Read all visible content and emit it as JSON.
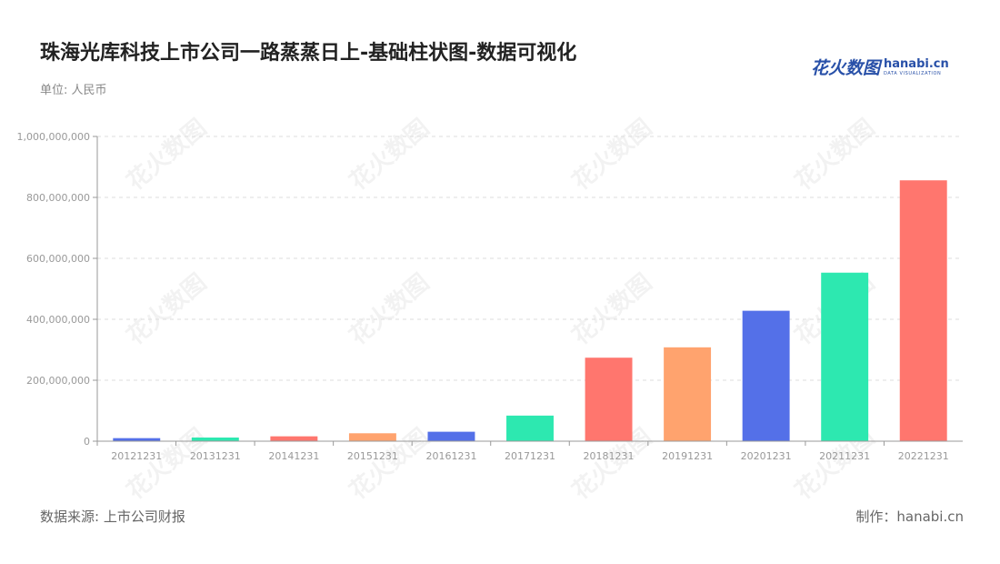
{
  "header": {
    "title": "珠海光库科技上市公司一路蒸蒸日上-基础柱状图-数据可视化",
    "unit": "单位: 人民币"
  },
  "logo": {
    "cn": "花火数图",
    "en": "hanabi.cn",
    "sub": "DATA VISUALIZATION"
  },
  "footer": {
    "source": "数据来源: 上市公司财报",
    "credit": "制作：hanabi.cn"
  },
  "watermark_text": "花火数图",
  "chart_data": {
    "type": "bar",
    "categories": [
      "20121231",
      "20131231",
      "20141231",
      "20151231",
      "20161231",
      "20171231",
      "20181231",
      "20191231",
      "20201231",
      "20211231",
      "20221231"
    ],
    "values": [
      10000000,
      12000000,
      16000000,
      26000000,
      31000000,
      84000000,
      274000000,
      308000000,
      428000000,
      553000000,
      856000000
    ],
    "colors": [
      "#5470e8",
      "#2de8b0",
      "#ff766e",
      "#ffa36e",
      "#5470e8",
      "#2de8b0",
      "#ff766e",
      "#ffa36e",
      "#5470e8",
      "#2de8b0",
      "#ff766e"
    ],
    "yticks": [
      "0",
      "200,000,000",
      "400,000,000",
      "600,000,000",
      "800,000,000",
      "1,000,000,000"
    ],
    "ylim": [
      0,
      1000000000
    ],
    "grid": true,
    "title": "",
    "xlabel": "",
    "ylabel": ""
  }
}
